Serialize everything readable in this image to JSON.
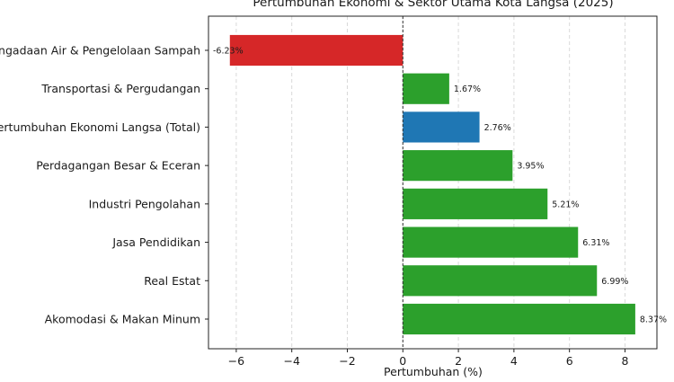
{
  "chart_data": {
    "type": "bar",
    "orientation": "horizontal",
    "title": "Pertumbuhan Ekonomi & Sektor Utama Kota Langsa (2025)",
    "xlabel": "Pertumbuhan (%)",
    "ylabel": "",
    "xlim": [
      -7,
      9.15
    ],
    "xticks": [
      -6,
      -4,
      -2,
      0,
      2,
      4,
      6,
      8
    ],
    "xtick_labels": [
      "−6",
      "−4",
      "−2",
      "0",
      "2",
      "4",
      "6",
      "8"
    ],
    "grid": "vertical-dashed",
    "reference_line": 0,
    "categories": [
      "Pengadaan Air & Pengelolaan Sampah",
      "Transportasi & Pergudangan",
      "Pertumbuhan Ekonomi Langsa (Total)",
      "Perdagangan Besar & Eceran",
      "Industri Pengolahan",
      "Jasa Pendidikan",
      "Real Estat",
      "Akomodasi & Makan Minum"
    ],
    "values": [
      -6.23,
      1.67,
      2.76,
      3.95,
      5.21,
      6.31,
      6.99,
      8.37
    ],
    "data_labels": [
      "-6.23%",
      "1.67%",
      "2.76%",
      "3.95%",
      "5.21%",
      "6.31%",
      "6.99%",
      "8.37%"
    ],
    "colors": [
      "#d62728",
      "#2ca02c",
      "#1f77b4",
      "#2ca02c",
      "#2ca02c",
      "#2ca02c",
      "#2ca02c",
      "#2ca02c"
    ]
  }
}
